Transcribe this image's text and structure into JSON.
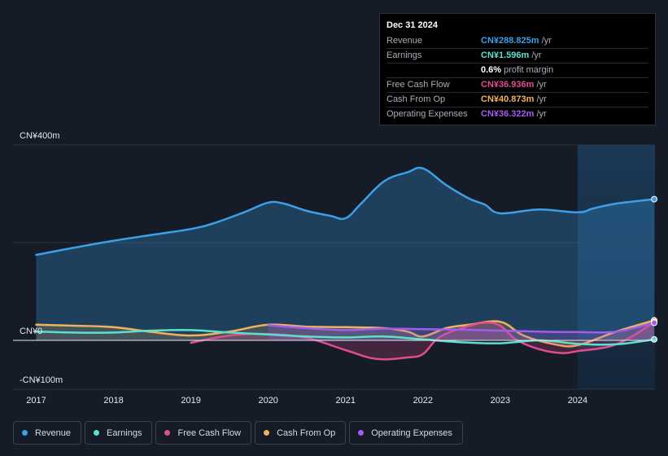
{
  "tooltip": {
    "date": "Dec 31 2024",
    "rows": [
      {
        "label": "Revenue",
        "value": "CN¥288.825m",
        "unit": "/yr",
        "color": "#3ba0e8"
      },
      {
        "label": "Earnings",
        "value": "CN¥1.596m",
        "unit": "/yr",
        "color": "#5ce0cc"
      },
      {
        "label": "",
        "value": "0.6%",
        "unit": "profit margin",
        "color": "#ffffff"
      },
      {
        "label": "Free Cash Flow",
        "value": "CN¥36.936m",
        "unit": "/yr",
        "color": "#e04d8e"
      },
      {
        "label": "Cash From Op",
        "value": "CN¥40.873m",
        "unit": "/yr",
        "color": "#f0b25e"
      },
      {
        "label": "Operating Expenses",
        "value": "CN¥36.322m",
        "unit": "/yr",
        "color": "#a45bf0"
      }
    ]
  },
  "legend": [
    {
      "label": "Revenue",
      "color": "#3ba0e8"
    },
    {
      "label": "Earnings",
      "color": "#5ce0cc"
    },
    {
      "label": "Free Cash Flow",
      "color": "#e04d8e"
    },
    {
      "label": "Cash From Op",
      "color": "#f0b25e"
    },
    {
      "label": "Operating Expenses",
      "color": "#a45bf0"
    }
  ],
  "chart_data": {
    "type": "line",
    "title": "",
    "y_tick_labels": [
      "CN¥400m",
      "CN¥0",
      "-CN¥100m"
    ],
    "ylim": [
      -100,
      400
    ],
    "x_tick_labels": [
      "2017",
      "2018",
      "2019",
      "2020",
      "2021",
      "2022",
      "2023",
      "2024"
    ],
    "xlim": [
      2016.7,
      2025.0
    ],
    "forecast_start": 2024.0,
    "series": [
      {
        "name": "Revenue",
        "color": "#3ba0e8",
        "fill": true,
        "points": [
          [
            2017.0,
            175
          ],
          [
            2017.5,
            190
          ],
          [
            2018.0,
            204
          ],
          [
            2018.5,
            216
          ],
          [
            2019.0,
            228
          ],
          [
            2019.3,
            240
          ],
          [
            2019.7,
            263
          ],
          [
            2020.0,
            282
          ],
          [
            2020.2,
            280
          ],
          [
            2020.5,
            265
          ],
          [
            2020.8,
            255
          ],
          [
            2021.0,
            250
          ],
          [
            2021.2,
            280
          ],
          [
            2021.5,
            326
          ],
          [
            2021.8,
            344
          ],
          [
            2022.0,
            352
          ],
          [
            2022.3,
            318
          ],
          [
            2022.6,
            290
          ],
          [
            2022.8,
            278
          ],
          [
            2023.0,
            260
          ],
          [
            2023.5,
            268
          ],
          [
            2024.0,
            262
          ],
          [
            2024.2,
            270
          ],
          [
            2024.5,
            280
          ],
          [
            2024.99,
            289
          ]
        ]
      },
      {
        "name": "Earnings",
        "color": "#5ce0cc",
        "fill": false,
        "points": [
          [
            2017.0,
            18
          ],
          [
            2017.5,
            16
          ],
          [
            2018.0,
            16
          ],
          [
            2018.5,
            20
          ],
          [
            2019.0,
            21
          ],
          [
            2019.5,
            16
          ],
          [
            2020.0,
            12
          ],
          [
            2020.5,
            8
          ],
          [
            2021.0,
            6
          ],
          [
            2021.5,
            8
          ],
          [
            2022.0,
            2
          ],
          [
            2022.5,
            -4
          ],
          [
            2023.0,
            -6
          ],
          [
            2023.5,
            0
          ],
          [
            2024.0,
            -7
          ],
          [
            2024.5,
            -8
          ],
          [
            2024.99,
            2
          ]
        ]
      },
      {
        "name": "Free Cash Flow",
        "color": "#e04d8e",
        "fill": true,
        "points": [
          [
            2019.0,
            -5
          ],
          [
            2019.5,
            10
          ],
          [
            2020.0,
            13
          ],
          [
            2020.5,
            5
          ],
          [
            2021.0,
            -20
          ],
          [
            2021.4,
            -38
          ],
          [
            2021.8,
            -35
          ],
          [
            2022.0,
            -28
          ],
          [
            2022.2,
            5
          ],
          [
            2022.5,
            25
          ],
          [
            2022.8,
            36
          ],
          [
            2023.0,
            30
          ],
          [
            2023.2,
            2
          ],
          [
            2023.5,
            -18
          ],
          [
            2023.8,
            -26
          ],
          [
            2024.0,
            -22
          ],
          [
            2024.5,
            -8
          ],
          [
            2024.99,
            37
          ]
        ]
      },
      {
        "name": "Cash From Op",
        "color": "#f0b25e",
        "fill": true,
        "points": [
          [
            2017.0,
            32
          ],
          [
            2017.5,
            30
          ],
          [
            2018.0,
            27
          ],
          [
            2018.5,
            17
          ],
          [
            2019.0,
            10
          ],
          [
            2019.5,
            18
          ],
          [
            2020.0,
            32
          ],
          [
            2020.5,
            28
          ],
          [
            2021.0,
            27
          ],
          [
            2021.5,
            25
          ],
          [
            2021.8,
            18
          ],
          [
            2022.0,
            8
          ],
          [
            2022.3,
            25
          ],
          [
            2022.6,
            32
          ],
          [
            2023.0,
            38
          ],
          [
            2023.3,
            10
          ],
          [
            2023.7,
            -8
          ],
          [
            2024.0,
            -10
          ],
          [
            2024.5,
            18
          ],
          [
            2024.99,
            41
          ]
        ]
      },
      {
        "name": "Operating Expenses",
        "color": "#a45bf0",
        "fill": true,
        "points": [
          [
            2020.0,
            31
          ],
          [
            2020.5,
            25
          ],
          [
            2021.0,
            21
          ],
          [
            2021.5,
            24
          ],
          [
            2022.0,
            23
          ],
          [
            2022.5,
            22
          ],
          [
            2023.0,
            20
          ],
          [
            2023.5,
            18
          ],
          [
            2024.0,
            17
          ],
          [
            2024.5,
            18
          ],
          [
            2024.99,
            36
          ]
        ]
      }
    ]
  }
}
